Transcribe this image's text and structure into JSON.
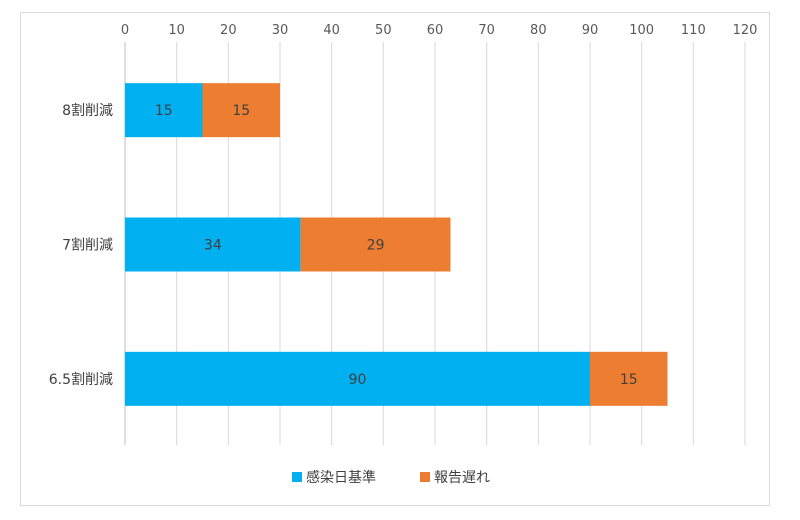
{
  "chart_data": {
    "type": "bar",
    "orientation": "horizontal",
    "stacked": true,
    "categories": [
      "8割削減",
      "7割削減",
      "6.5割削減"
    ],
    "series": [
      {
        "name": "感染日基準",
        "values": [
          15,
          34,
          90
        ],
        "color": "#00B0F0"
      },
      {
        "name": "報告遅れ",
        "values": [
          15,
          29,
          15
        ],
        "color": "#ED7D31"
      }
    ],
    "xlim": [
      0,
      120
    ],
    "xticks": [
      0,
      10,
      20,
      30,
      40,
      50,
      60,
      70,
      80,
      90,
      100,
      110,
      120
    ],
    "x_axis_position": "top",
    "grid": true,
    "legend_position": "bottom",
    "data_labels": true
  }
}
